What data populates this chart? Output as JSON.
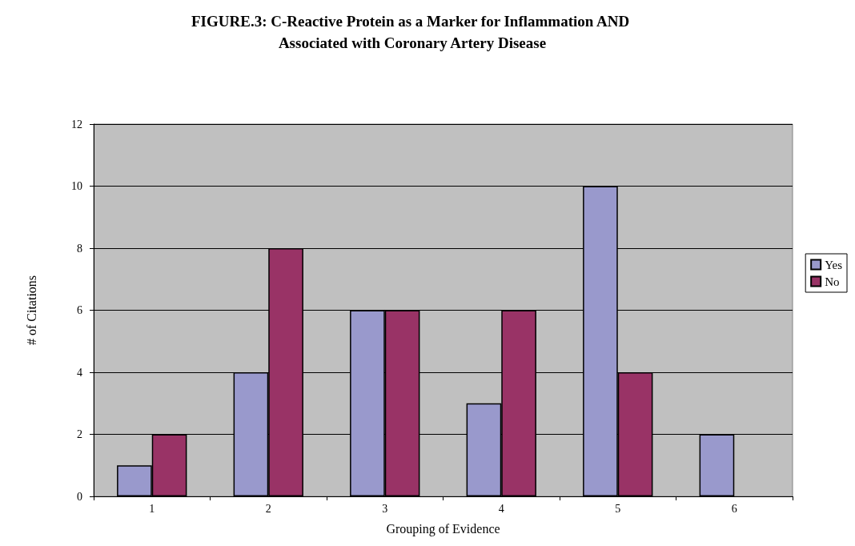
{
  "chart_data": {
    "type": "bar",
    "title": "FIGURE.3: C-Reactive Protein as a Marker for Inflammation AND Associated with Coronary Artery Disease",
    "xlabel": "Grouping of Evidence",
    "ylabel": "# of Citations",
    "categories": [
      "1",
      "2",
      "3",
      "4",
      "5",
      "6"
    ],
    "series": [
      {
        "name": "Yes",
        "color": "#9999cc",
        "values": [
          1,
          4,
          6,
          3,
          10,
          2
        ]
      },
      {
        "name": "No",
        "color": "#993366",
        "values": [
          2,
          8,
          6,
          6,
          4,
          null
        ]
      }
    ],
    "ylim": [
      0,
      12
    ],
    "yticks": [
      0,
      2,
      4,
      6,
      8,
      10,
      12
    ],
    "grid": "y",
    "legend": "right"
  }
}
